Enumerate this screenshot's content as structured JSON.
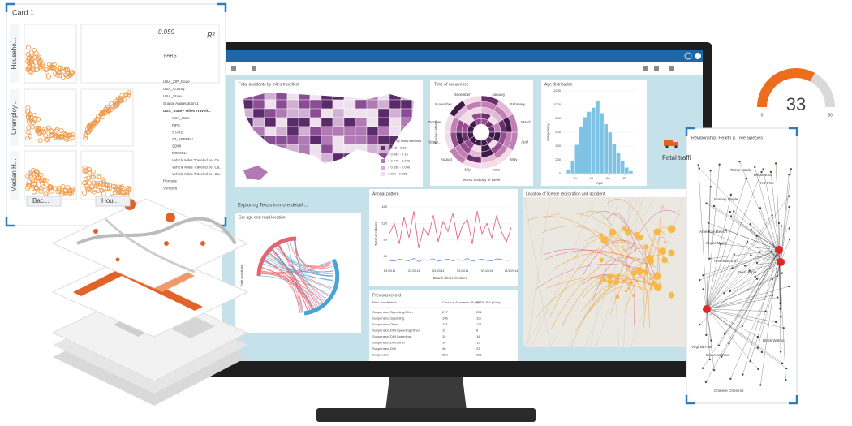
{
  "card1": {
    "title": "Card 1",
    "stat": "0.059",
    "r2": "R²",
    "row_labels": [
      "Househo...",
      "Unemploy...",
      "Median H..."
    ],
    "buttons": [
      "Bac...",
      "Hou..."
    ]
  },
  "gauge": {
    "value": 33,
    "min": 0,
    "max": 50
  },
  "app": {
    "title": "FARS",
    "datasets": [
      "USA_ZIP_Code",
      "USA_County",
      "USA_State",
      "Spatial Aggregation 1",
      "USA_State - Miles Travell..."
    ],
    "fields": [
      "USA_State",
      "FIPS",
      "STATE",
      "ST_ABBREV",
      "SQMI",
      "POP2014",
      "Vehicle Miles Traveled per Ca...",
      "Vehicle Miles Traveled per Ca...",
      "Vehicle Miles Traveled per Ca..."
    ],
    "tail": [
      "Persons",
      "Vehicles"
    ]
  },
  "map_card": {
    "title": "Fatal accidents by miles travelled",
    "legend_title": "Accidents by miles travelled",
    "legend": [
      {
        "label": "> 0.15 - 0.36",
        "color": "#5b2a6b"
      },
      {
        "label": "> 0.093 - 0.15",
        "color": "#8a4d93"
      },
      {
        "label": "> 0.049 - 0.093",
        "color": "#b07bb5"
      },
      {
        "label": "> 0.035 - 0.049",
        "color": "#d2b0d4"
      },
      {
        "label": "0.024 - 0.035",
        "color": "#efe0ee"
      }
    ]
  },
  "time_card": {
    "title": "Time of occurrence",
    "xlabel": "Month and day of week",
    "ylabel": "Total accidents",
    "months": [
      "January",
      "February",
      "March",
      "April",
      "May",
      "June",
      "July",
      "August",
      "Septe...",
      "October",
      "November",
      "December"
    ]
  },
  "age_histogram": {
    "type": "histogram",
    "title": "Age distribution",
    "xlabel": "Age",
    "ylabel": "Frequency",
    "color": "#7ec3e6",
    "bins": [
      10,
      15,
      20,
      25,
      30,
      35,
      40,
      45,
      50,
      55,
      60,
      65,
      70,
      75,
      80,
      85,
      90
    ],
    "counts": [
      60,
      180,
      420,
      680,
      820,
      900,
      960,
      1050,
      880,
      720,
      600,
      430,
      300,
      180,
      90,
      40
    ],
    "xlim": [
      5,
      95
    ],
    "xticks": [
      20,
      40,
      60,
      80
    ],
    "ylim": [
      0,
      1200
    ],
    "yticks": [
      0,
      200,
      400,
      600,
      800,
      1000,
      1200
    ]
  },
  "fatal_text": "Fatal traffi",
  "texas_heading": "Exploring Texas in more detail ...",
  "car_age_card": {
    "title": "Car age and road location",
    "ylabel": "Total accidents"
  },
  "annual_pattern": {
    "type": "line",
    "title": "Annual pattern",
    "xlabel": "Drunk driver involved",
    "ylabel": "Total accidents",
    "x_labels": [
      "1/1/2014",
      "3/1/2014",
      "5/1/2014",
      "7/1/2014",
      "9/1/2014",
      "11/1/2014"
    ],
    "ylim": [
      20,
      170
    ],
    "yticks": [
      40,
      80,
      120,
      160
    ],
    "series": [
      {
        "color": "#e0588a",
        "values": [
          95,
          120,
          70,
          135,
          85,
          150,
          60,
          110,
          90,
          140,
          75,
          125,
          100,
          145,
          80,
          115,
          130,
          70,
          150,
          95,
          120,
          85,
          140,
          100,
          75,
          110
        ]
      },
      {
        "color": "#5b8fd6",
        "values": [
          30,
          28,
          33,
          31,
          29,
          35,
          27,
          32,
          30,
          34,
          28,
          31,
          33,
          29,
          32,
          30,
          35,
          28,
          31,
          33,
          30,
          29,
          34,
          32,
          30,
          31
        ]
      }
    ]
  },
  "location_card": {
    "title": "Location of licence registration and accident"
  },
  "previous_record": {
    "title": "Previous record",
    "headers": [
      "Prev accidents #",
      "Count of Accidents (Sum)",
      "FATALS # (Sum)"
    ],
    "rows": [
      [
        "Suspension,Speeding,Other",
        217,
        231
      ],
      [
        "Suspension,Speeding",
        106,
        111
      ],
      [
        "Suspension,Other",
        113,
        121
      ],
      [
        "Suspension,DUI,Speeding,Other",
        11,
        8
      ],
      [
        "Suspension,DUI,Speeding",
        15,
        16
      ],
      [
        "Suspension,DUI,Other",
        10,
        12
      ],
      [
        "Suspension,DUI",
        40,
        23
      ],
      [
        "Suspension",
        352,
        381
      ]
    ]
  },
  "relationship": {
    "title": "Relationship: Health & Tree Species",
    "nodes": [
      "Tamar Maple",
      "Yellowwood",
      "Red Pine",
      "Norway Maple",
      "American Beech",
      "Sugar Maple",
      "American Elm",
      "Red Maple",
      "Black Walnut",
      "Virginia Pine",
      "Empress Tree",
      "Chinese Chestnut"
    ]
  }
}
